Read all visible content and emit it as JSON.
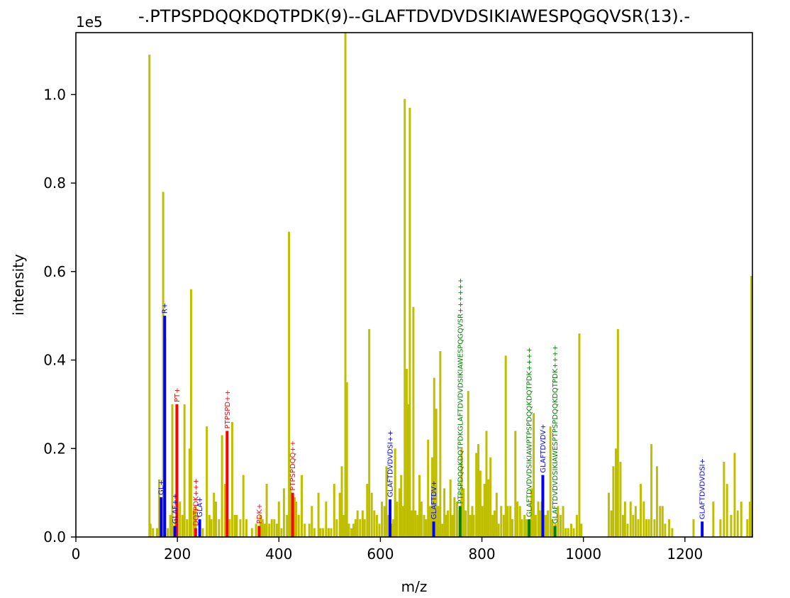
{
  "chart_data": {
    "type": "bar",
    "title": "-.PTPSPDQQKDQTPDK(9)--GLAFTDVDVDSIKIAWESPQGQVSR(13).-",
    "xlabel": "m/z",
    "ylabel": "intensity",
    "y_offset_label": "1e5",
    "xlim": [
      0,
      1333
    ],
    "ylim": [
      0,
      1.14
    ],
    "x_ticks": [
      0,
      200,
      400,
      600,
      800,
      1000,
      1200
    ],
    "x_tick_labels": [
      "0",
      "200",
      "400",
      "600",
      "800",
      "1000",
      "1200"
    ],
    "y_ticks": [
      0.0,
      0.2,
      0.4,
      0.6,
      0.8,
      1.0
    ],
    "y_tick_labels": [
      "0.0",
      "0.2",
      "0.4",
      "0.6",
      "0.8",
      "1.0"
    ],
    "grid": false,
    "colors": {
      "unmatched": "#bfbf00",
      "b_ion": "#ff0000",
      "y_ion": "#0000ff",
      "precursor": "#008000"
    },
    "series": [
      {
        "name": "unmatched",
        "color": "#bfbf00",
        "points": [
          [
            145,
            1.09
          ],
          [
            147,
            0.03
          ],
          [
            152,
            0.02
          ],
          [
            160,
            0.02
          ],
          [
            164,
            0.13
          ],
          [
            168,
            0.07
          ],
          [
            172,
            0.78
          ],
          [
            176,
            0.45
          ],
          [
            181,
            0.02
          ],
          [
            186,
            0.05
          ],
          [
            190,
            0.3
          ],
          [
            196,
            0.04
          ],
          [
            205,
            0.08
          ],
          [
            210,
            0.05
          ],
          [
            214,
            0.3
          ],
          [
            219,
            0.04
          ],
          [
            224,
            0.2
          ],
          [
            227,
            0.56
          ],
          [
            232,
            0.06
          ],
          [
            236,
            0.07
          ],
          [
            244,
            0.04
          ],
          [
            250,
            0.02
          ],
          [
            258,
            0.25
          ],
          [
            263,
            0.05
          ],
          [
            267,
            0.04
          ],
          [
            272,
            0.1
          ],
          [
            276,
            0.08
          ],
          [
            282,
            0.04
          ],
          [
            288,
            0.23
          ],
          [
            294,
            0.12
          ],
          [
            303,
            0.04
          ],
          [
            308,
            0.26
          ],
          [
            313,
            0.05
          ],
          [
            317,
            0.05
          ],
          [
            324,
            0.04
          ],
          [
            330,
            0.14
          ],
          [
            336,
            0.04
          ],
          [
            347,
            0.02
          ],
          [
            355,
            0.03
          ],
          [
            364,
            0.05
          ],
          [
            368,
            0.04
          ],
          [
            372,
            0.03
          ],
          [
            376,
            0.12
          ],
          [
            381,
            0.03
          ],
          [
            386,
            0.04
          ],
          [
            391,
            0.04
          ],
          [
            396,
            0.03
          ],
          [
            400,
            0.08
          ],
          [
            405,
            0.02
          ],
          [
            410,
            0.11
          ],
          [
            416,
            0.05
          ],
          [
            420,
            0.69
          ],
          [
            423,
            0.11
          ],
          [
            431,
            0.09
          ],
          [
            434,
            0.08
          ],
          [
            439,
            0.05
          ],
          [
            445,
            0.14
          ],
          [
            451,
            0.03
          ],
          [
            460,
            0.03
          ],
          [
            465,
            0.07
          ],
          [
            470,
            0.02
          ],
          [
            478,
            0.1
          ],
          [
            482,
            0.02
          ],
          [
            487,
            0.02
          ],
          [
            493,
            0.08
          ],
          [
            498,
            0.02
          ],
          [
            503,
            0.02
          ],
          [
            509,
            0.12
          ],
          [
            514,
            0.04
          ],
          [
            520,
            0.1
          ],
          [
            524,
            0.16
          ],
          [
            527,
            0.05
          ],
          [
            531,
            1.14
          ],
          [
            534,
            0.35
          ],
          [
            538,
            0.03
          ],
          [
            543,
            0.02
          ],
          [
            547,
            0.03
          ],
          [
            551,
            0.04
          ],
          [
            555,
            0.06
          ],
          [
            560,
            0.04
          ],
          [
            565,
            0.06
          ],
          [
            569,
            0.04
          ],
          [
            574,
            0.12
          ],
          [
            578,
            0.47
          ],
          [
            583,
            0.1
          ],
          [
            588,
            0.06
          ],
          [
            593,
            0.05
          ],
          [
            598,
            0.03
          ],
          [
            603,
            0.08
          ],
          [
            608,
            0.07
          ],
          [
            612,
            0.16
          ],
          [
            616,
            0.05
          ],
          [
            621,
            0.03
          ],
          [
            625,
            0.04
          ],
          [
            629,
            0.2
          ],
          [
            633,
            0.08
          ],
          [
            638,
            0.11
          ],
          [
            641,
            0.14
          ],
          [
            645,
            0.07
          ],
          [
            648,
            0.99
          ],
          [
            652,
            0.38
          ],
          [
            655,
            0.3
          ],
          [
            658,
            0.97
          ],
          [
            661,
            0.06
          ],
          [
            665,
            0.52
          ],
          [
            669,
            0.06
          ],
          [
            673,
            0.05
          ],
          [
            677,
            0.14
          ],
          [
            681,
            0.08
          ],
          [
            686,
            0.05
          ],
          [
            690,
            0.04
          ],
          [
            694,
            0.22
          ],
          [
            698,
            0.07
          ],
          [
            702,
            0.18
          ],
          [
            706,
            0.36
          ],
          [
            710,
            0.29
          ],
          [
            714,
            0.07
          ],
          [
            718,
            0.42
          ],
          [
            722,
            0.03
          ],
          [
            726,
            0.11
          ],
          [
            730,
            0.05
          ],
          [
            733,
            0.06
          ],
          [
            738,
            0.13
          ],
          [
            742,
            0.05
          ],
          [
            746,
            0.09
          ],
          [
            751,
            0.08
          ],
          [
            756,
            0.06
          ],
          [
            760,
            0.2
          ],
          [
            764,
            0.11
          ],
          [
            768,
            0.06
          ],
          [
            773,
            0.33
          ],
          [
            777,
            0.05
          ],
          [
            781,
            0.07
          ],
          [
            784,
            0.05
          ],
          [
            789,
            0.19
          ],
          [
            793,
            0.21
          ],
          [
            797,
            0.15
          ],
          [
            801,
            0.07
          ],
          [
            805,
            0.12
          ],
          [
            809,
            0.24
          ],
          [
            813,
            0.13
          ],
          [
            817,
            0.18
          ],
          [
            821,
            0.05
          ],
          [
            825,
            0.06
          ],
          [
            829,
            0.1
          ],
          [
            833,
            0.03
          ],
          [
            838,
            0.07
          ],
          [
            843,
            0.05
          ],
          [
            847,
            0.41
          ],
          [
            851,
            0.07
          ],
          [
            856,
            0.07
          ],
          [
            860,
            0.04
          ],
          [
            866,
            0.24
          ],
          [
            870,
            0.08
          ],
          [
            875,
            0.07
          ],
          [
            879,
            0.04
          ],
          [
            884,
            0.05
          ],
          [
            888,
            0.04
          ],
          [
            894,
            0.04
          ],
          [
            898,
            0.11
          ],
          [
            902,
            0.28
          ],
          [
            906,
            0.05
          ],
          [
            911,
            0.08
          ],
          [
            914,
            0.06
          ],
          [
            918,
            0.08
          ],
          [
            922,
            0.05
          ],
          [
            926,
            0.05
          ],
          [
            930,
            0.06
          ],
          [
            935,
            0.25
          ],
          [
            939,
            0.04
          ],
          [
            945,
            0.03
          ],
          [
            950,
            0.07
          ],
          [
            955,
            0.05
          ],
          [
            960,
            0.07
          ],
          [
            965,
            0.02
          ],
          [
            970,
            0.02
          ],
          [
            976,
            0.03
          ],
          [
            981,
            0.02
          ],
          [
            987,
            0.05
          ],
          [
            992,
            0.46
          ],
          [
            996,
            0.03
          ],
          [
            1050,
            0.1
          ],
          [
            1055,
            0.06
          ],
          [
            1059,
            0.16
          ],
          [
            1064,
            0.2
          ],
          [
            1068,
            0.47
          ],
          [
            1073,
            0.17
          ],
          [
            1078,
            0.05
          ],
          [
            1082,
            0.08
          ],
          [
            1087,
            0.03
          ],
          [
            1093,
            0.08
          ],
          [
            1098,
            0.05
          ],
          [
            1103,
            0.07
          ],
          [
            1108,
            0.04
          ],
          [
            1113,
            0.12
          ],
          [
            1119,
            0.08
          ],
          [
            1124,
            0.04
          ],
          [
            1129,
            0.04
          ],
          [
            1134,
            0.21
          ],
          [
            1140,
            0.04
          ],
          [
            1145,
            0.16
          ],
          [
            1151,
            0.07
          ],
          [
            1156,
            0.07
          ],
          [
            1161,
            0.03
          ],
          [
            1169,
            0.04
          ],
          [
            1175,
            0.02
          ],
          [
            1217,
            0.04
          ],
          [
            1256,
            0.08
          ],
          [
            1270,
            0.04
          ],
          [
            1277,
            0.17
          ],
          [
            1283,
            0.12
          ],
          [
            1291,
            0.05
          ],
          [
            1298,
            0.19
          ],
          [
            1304,
            0.06
          ],
          [
            1311,
            0.08
          ],
          [
            1323,
            0.04
          ],
          [
            1328,
            0.08
          ],
          [
            1331,
            0.59
          ]
        ]
      },
      {
        "name": "b ions",
        "color": "#ff0000",
        "points": [
          [
            199,
            0.3,
            "PT+"
          ],
          [
            236,
            0.02,
            "DQTPDK+++"
          ],
          [
            298,
            0.24,
            "PTPSPD++"
          ],
          [
            361,
            0.025,
            "PDK+"
          ],
          [
            427,
            0.1,
            "PTPSPDQQ++"
          ]
        ]
      },
      {
        "name": "y ions",
        "color": "#0000ff",
        "points": [
          [
            168,
            0.09,
            "GL+"
          ],
          [
            175,
            0.5,
            "R+"
          ],
          [
            195,
            0.025,
            "GLAF++"
          ],
          [
            244,
            0.04,
            "GLA+"
          ],
          [
            619,
            0.085,
            "GLAFTDVDVDSI++"
          ],
          [
            705,
            0.035,
            "GLAFTDV+"
          ],
          [
            920,
            0.14,
            "GLAFTDVDV+"
          ],
          [
            1234,
            0.035,
            "GLAFTDVDVDSI+"
          ]
        ]
      },
      {
        "name": "precursor",
        "color": "#008000",
        "points": [
          [
            757,
            0.07,
            "PTPSPDQQKDQTPDKGLAFTDVDVDSIKIAWESPQGQVSR++++++"
          ],
          [
            893,
            0.04,
            "GLAFTDVDVDSIKIAWPTPSPDQQKDQTPDK++++"
          ],
          [
            944,
            0.025,
            "GLAFTDVDVDSIKIAWESPTPSPDQQKDQTPDK++++"
          ]
        ]
      }
    ]
  }
}
